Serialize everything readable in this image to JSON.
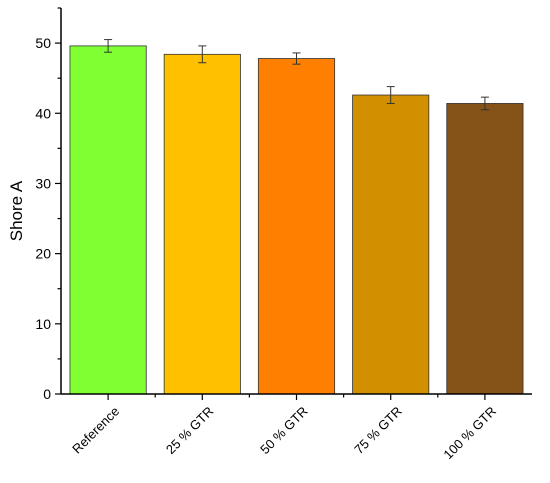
{
  "chart_data": {
    "type": "bar",
    "categories": [
      "Reference",
      "25 % GTR",
      "50 % GTR",
      "75 % GTR",
      "100 % GTR"
    ],
    "values": [
      49.6,
      48.4,
      47.8,
      42.6,
      41.4
    ],
    "errors": [
      0.9,
      1.2,
      0.8,
      1.2,
      0.9
    ],
    "colors": [
      "#80FF33",
      "#FFC000",
      "#FF8000",
      "#D29000",
      "#855218"
    ],
    "xlabel": "",
    "ylabel": "Shore A",
    "ylim": [
      0,
      55
    ],
    "yticks": [
      0,
      10,
      20,
      30,
      40,
      50
    ],
    "grid": false,
    "legend": "none"
  }
}
